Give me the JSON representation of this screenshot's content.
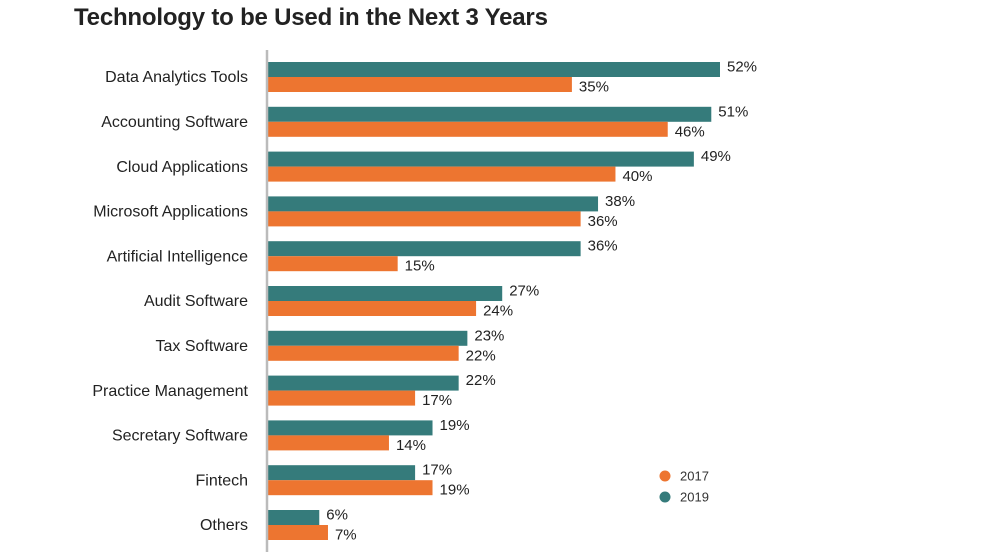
{
  "chart_data": {
    "type": "bar",
    "orientation": "horizontal",
    "title": "Technology to be Used in the Next 3 Years",
    "categories": [
      "Data Analytics Tools",
      "Accounting Software",
      "Cloud Applications",
      "Microsoft Applications",
      "Artificial Intelligence",
      "Audit Software",
      "Tax Software",
      "Practice Management",
      "Secretary Software",
      "Fintech",
      "Others"
    ],
    "series": [
      {
        "name": "2019",
        "color": "#357b7b",
        "values": [
          52,
          51,
          49,
          38,
          36,
          27,
          23,
          22,
          19,
          17,
          6
        ],
        "labels": [
          "52%",
          "51%",
          "49%",
          "38%",
          "36%",
          "27%",
          "23%",
          "22%",
          "19%",
          "17%",
          "6%"
        ]
      },
      {
        "name": "2017",
        "color": "#ed7530",
        "values": [
          35,
          46,
          40,
          36,
          15,
          24,
          22,
          17,
          14,
          19,
          7
        ],
        "labels": [
          "35%",
          "46%",
          "40%",
          "36%",
          "15%",
          "24%",
          "22%",
          "17%",
          "14%",
          "19%",
          "7%"
        ]
      }
    ],
    "legend": {
      "placement": "bottom-right",
      "items": [
        {
          "label": "2017",
          "color": "#ed7530"
        },
        {
          "label": "2019",
          "color": "#357b7b"
        }
      ]
    },
    "xlim": [
      0,
      52
    ],
    "grid": false,
    "axis_color": "#bbbbbb"
  }
}
